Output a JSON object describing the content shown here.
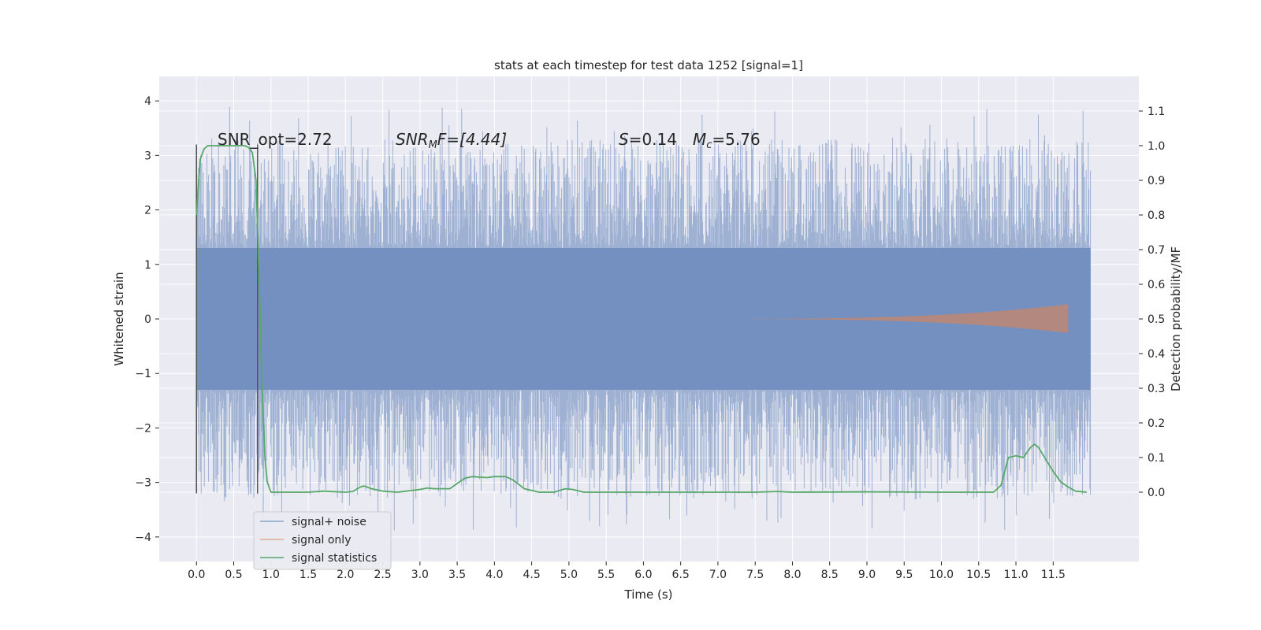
{
  "chart_data": {
    "type": "line",
    "title": "stats at each timestep for test data 1252 [signal=1]",
    "xlabel": "Time (s)",
    "ylabel": "Whitened strain",
    "y2label": "Detection probability/MF",
    "xlim": [
      -0.5,
      12.65
    ],
    "ylim": [
      -4.45,
      4.45
    ],
    "y2lim": [
      -0.2,
      1.2
    ],
    "x_ticks": [
      0.0,
      0.5,
      1.0,
      1.5,
      2.0,
      2.5,
      3.0,
      3.5,
      4.0,
      4.5,
      5.0,
      5.5,
      6.0,
      6.5,
      7.0,
      7.5,
      8.0,
      8.5,
      9.0,
      9.5,
      10.0,
      10.5,
      11.0,
      11.5
    ],
    "x_tick_labels": [
      "0.0",
      "0.5",
      "1.0",
      "1.5",
      "2.0",
      "2.5",
      "3.0",
      "3.5",
      "4.0",
      "4.5",
      "5.0",
      "5.5",
      "6.0",
      "6.5",
      "7.0",
      "7.5",
      "8.0",
      "8.5",
      "9.0",
      "9.5",
      "10.0",
      "10.5",
      "11.0",
      "11.5"
    ],
    "y_ticks": [
      4,
      3,
      2,
      1,
      0,
      -1,
      -2,
      -3,
      -4
    ],
    "y_tick_labels": [
      "4",
      "3",
      "2",
      "1",
      "0",
      "−1",
      "−2",
      "−3",
      "−4"
    ],
    "y2_ticks": [
      1.1,
      1.0,
      0.9,
      0.8,
      0.7,
      0.6,
      0.5,
      0.4,
      0.3,
      0.2,
      0.1,
      0.0
    ],
    "y2_tick_labels": [
      "1.1",
      "1.0",
      "0.9",
      "0.8",
      "0.7",
      "0.6",
      "0.5",
      "0.4",
      "0.3",
      "0.2",
      "0.1",
      "0.0"
    ],
    "grid": true,
    "legend_position": "lower-left",
    "annotations": {
      "snr_opt": "SNR_opt=2.72",
      "snr_mf_main": "SNR",
      "snr_mf_sub": "M",
      "snr_mf_rest": "F=[4.44]",
      "s_main": "S",
      "s_rest": "=0.14",
      "mc_main": "M",
      "mc_sub": "c",
      "mc_rest": "=5.76"
    },
    "markers": [
      0.0,
      0.82
    ],
    "series": [
      {
        "name": "signal+ noise",
        "color": "#4c72b0",
        "axis": "left",
        "x_range": [
          0.0,
          12.0
        ],
        "envelope": {
          "typical": 1.3,
          "peak_max": 4.1,
          "peak_min": -4.05
        }
      },
      {
        "name": "signal only",
        "color": "#dd8452",
        "axis": "left",
        "x_range": [
          6.5,
          11.7
        ],
        "envelope": {
          "peak": 0.27
        }
      },
      {
        "name": "signal statistics",
        "color": "#55a868",
        "axis": "right",
        "x": [
          0.0,
          0.05,
          0.1,
          0.15,
          0.2,
          0.3,
          0.5,
          0.65,
          0.7,
          0.75,
          0.8,
          0.85,
          0.88,
          0.92,
          0.95,
          1.0,
          1.1,
          1.5,
          1.7,
          2.0,
          2.1,
          2.2,
          2.25,
          2.35,
          2.5,
          2.7,
          3.0,
          3.1,
          3.2,
          3.4,
          3.5,
          3.6,
          3.7,
          3.9,
          4.0,
          4.15,
          4.25,
          4.4,
          4.6,
          4.8,
          4.95,
          5.05,
          5.2,
          5.5,
          6.5,
          7.5,
          7.8,
          8.0,
          9.0,
          10.0,
          10.7,
          10.8,
          10.9,
          11.0,
          11.1,
          11.2,
          11.25,
          11.3,
          11.4,
          11.5,
          11.6,
          11.7,
          11.8,
          11.95
        ],
        "y": [
          0.8,
          0.96,
          0.99,
          1.0,
          1.0,
          1.0,
          1.0,
          1.0,
          0.995,
          0.98,
          0.9,
          0.55,
          0.3,
          0.1,
          0.03,
          0.0,
          0.0,
          0.0,
          0.003,
          0.0,
          0.002,
          0.015,
          0.018,
          0.01,
          0.003,
          0.0,
          0.008,
          0.012,
          0.01,
          0.01,
          0.025,
          0.04,
          0.045,
          0.042,
          0.045,
          0.045,
          0.035,
          0.01,
          0.0,
          0.0,
          0.01,
          0.008,
          0.0,
          0.0,
          0.0,
          0.0,
          0.002,
          0.0,
          0.001,
          0.0,
          0.0,
          0.02,
          0.1,
          0.105,
          0.1,
          0.13,
          0.138,
          0.13,
          0.095,
          0.06,
          0.03,
          0.015,
          0.003,
          0.0
        ]
      }
    ]
  }
}
